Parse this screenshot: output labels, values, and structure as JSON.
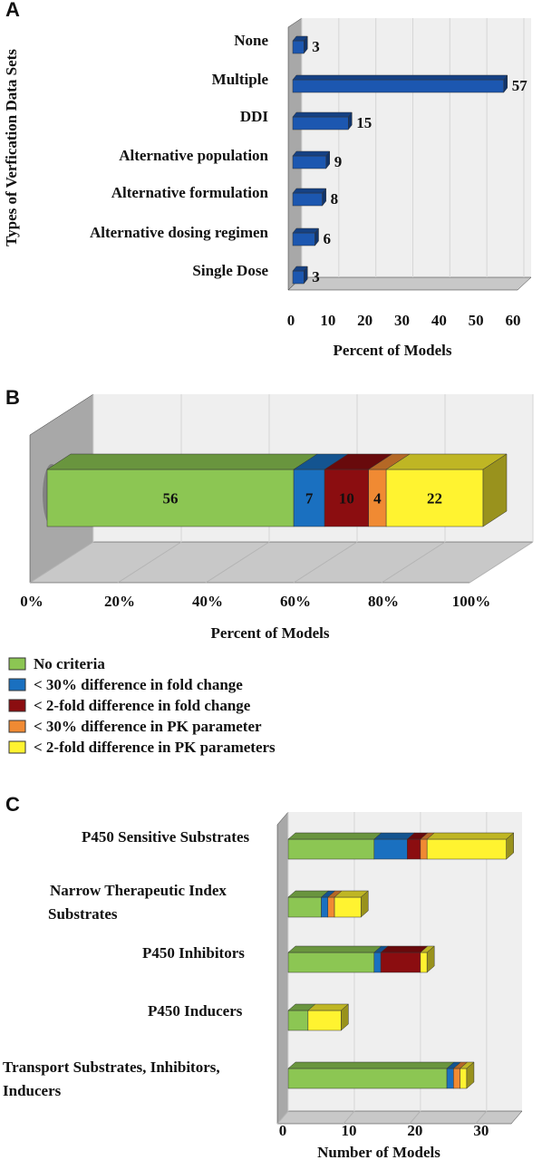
{
  "colors": {
    "panel_a_bar": "#1c57b0",
    "no_criteria": "#8cc653",
    "lt30_fold": "#1a70c0",
    "lt2_fold": "#8b0d10",
    "lt30_pk": "#f08a33",
    "lt2_pk": "#fff330",
    "wall": "#efefef",
    "floor": "#c8c8c8",
    "side_wall": "#a8a8a8"
  },
  "chart_data": [
    {
      "panel": "A",
      "type": "bar",
      "orientation": "horizontal",
      "panel_label": "A",
      "categories": [
        "None",
        "Multiple",
        "DDI",
        "Alternative population",
        "Alternative formulation",
        "Alternative dosing regimen",
        "Single Dose"
      ],
      "values": [
        3,
        57,
        15,
        9,
        8,
        6,
        3
      ],
      "value_labels": [
        "3",
        "57",
        "15",
        "9",
        "8",
        "6",
        "3"
      ],
      "xlabel": "Percent of Models",
      "ylabel": "Types of Verfication Data Sets",
      "xlim": [
        0,
        60
      ],
      "x_ticks": [
        "0",
        "10",
        "20",
        "30",
        "40",
        "50",
        "60"
      ],
      "grid": true
    },
    {
      "panel": "B",
      "type": "bar",
      "orientation": "horizontal",
      "stacked": "percent",
      "panel_label": "B",
      "series": [
        {
          "name": "No criteria",
          "values": [
            56
          ],
          "label": "56"
        },
        {
          "name": "< 30% difference in fold change",
          "values": [
            7
          ],
          "label": "7"
        },
        {
          "name": "< 2-fold difference in fold change",
          "values": [
            10
          ],
          "label": "10"
        },
        {
          "name": "< 30% difference in PK parameter",
          "values": [
            4
          ],
          "label": "4"
        },
        {
          "name": "< 2-fold difference in PK parameters",
          "values": [
            22
          ],
          "label": "22"
        }
      ],
      "xlabel": "Percent of Models",
      "x_ticks": [
        "0%",
        "20%",
        "40%",
        "60%",
        "80%",
        "100%"
      ],
      "xlim": [
        0,
        100
      ],
      "legend_placement": "bottom-left",
      "grid": true
    },
    {
      "panel": "C",
      "type": "bar",
      "orientation": "horizontal",
      "stacked": true,
      "panel_label": "C",
      "categories": [
        [
          "P450 Sensitive Substrates"
        ],
        [
          "Narrow Therapeutic Index",
          " Substrates"
        ],
        [
          "P450 Inhibitors"
        ],
        [
          "P450 Inducers"
        ],
        [
          "Transport Substrates, Inhibitors,",
          " Inducers"
        ]
      ],
      "series": [
        {
          "name": "No criteria",
          "values": [
            13,
            5,
            13,
            3,
            24
          ]
        },
        {
          "name": "< 30% difference in fold change",
          "values": [
            5,
            1,
            1,
            0,
            1
          ]
        },
        {
          "name": "< 2-fold difference in fold change",
          "values": [
            2,
            0,
            6,
            0,
            0
          ]
        },
        {
          "name": "< 30% difference in PK parameter",
          "values": [
            1,
            1,
            0,
            0,
            1
          ]
        },
        {
          "name": "< 2-fold difference in PK parameters",
          "values": [
            12,
            4,
            1,
            5,
            1
          ]
        }
      ],
      "xlabel": "Number of Models",
      "xlim": [
        0,
        34
      ],
      "x_ticks": [
        "0",
        "10",
        "20",
        "30"
      ],
      "grid": true
    }
  ]
}
